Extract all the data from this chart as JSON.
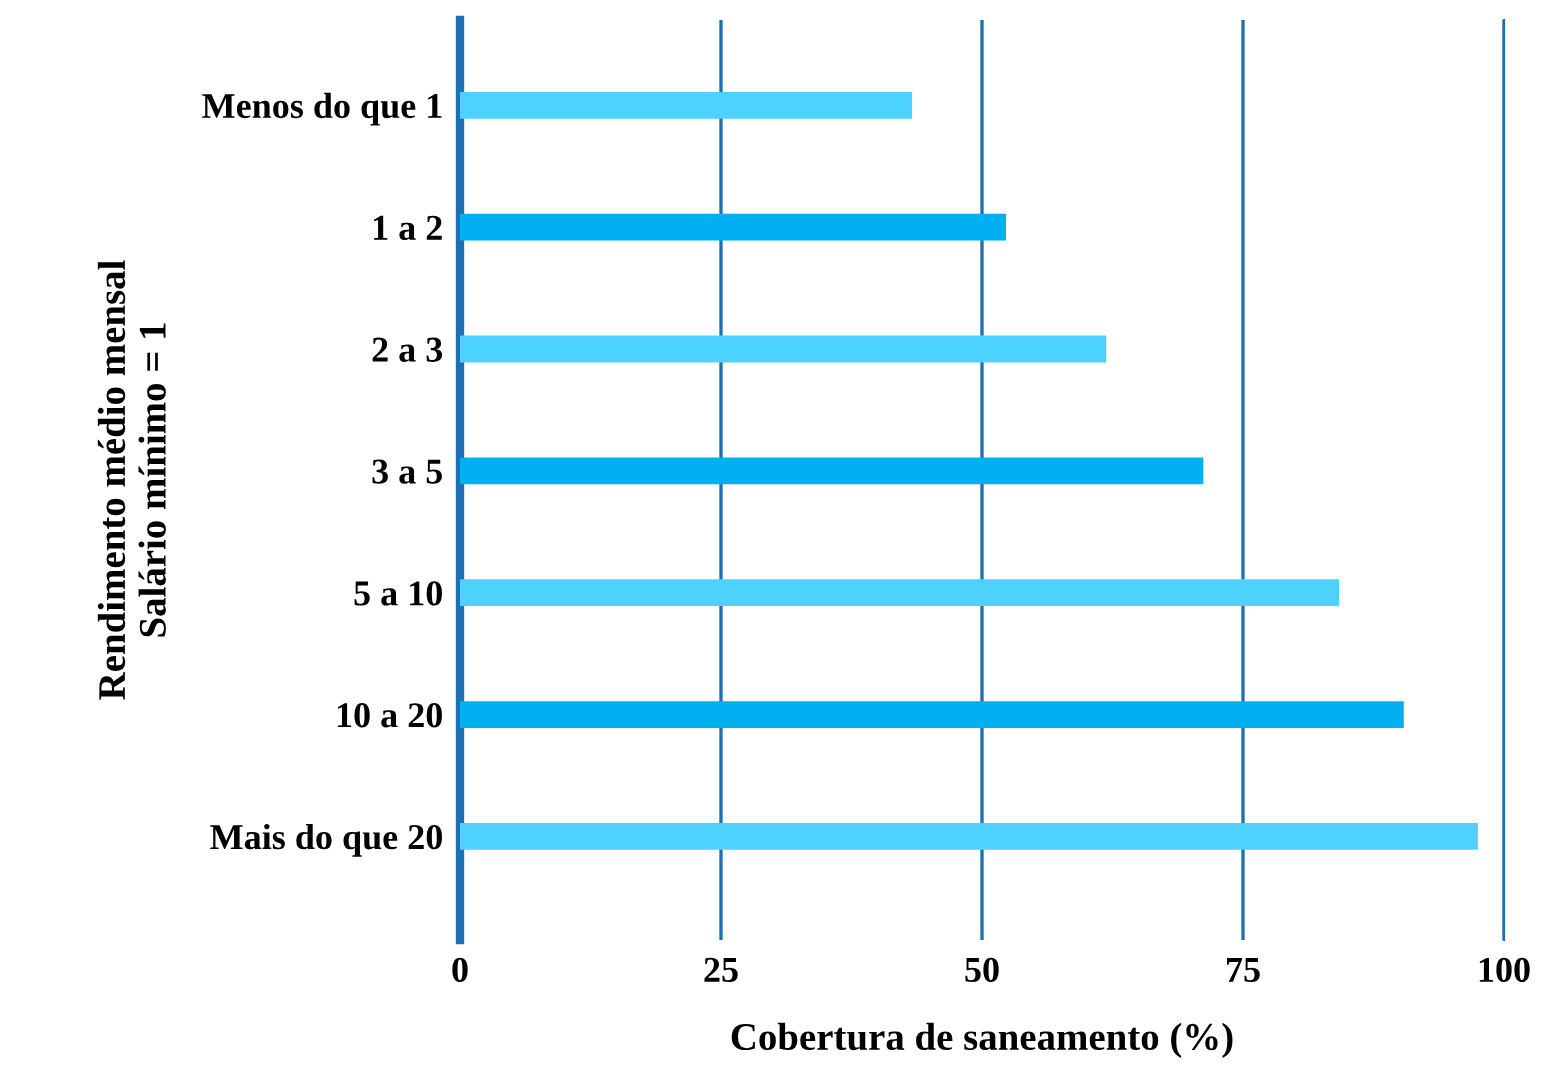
{
  "chart_data": {
    "type": "bar",
    "orientation": "horizontal",
    "xlabel": "Cobertura de saneamento (%)",
    "ylabel": "Rendimento médio mensal\nSalário mínimo = 1",
    "categories": [
      "Menos do que 1",
      "1 a 2",
      "2 a 3",
      "3 a 5",
      "5 a 10",
      "10 a 20",
      "Mais do que 20"
    ],
    "values": [
      43.3,
      52.3,
      61.9,
      71.2,
      84.2,
      90.4,
      97.5
    ],
    "colors": [
      "#4dd2ff",
      "#00b0f0",
      "#4dd2ff",
      "#00b0f0",
      "#4dd2ff",
      "#00b0f0",
      "#4dd2ff"
    ],
    "xlim": [
      0,
      100
    ],
    "xticks": [
      0,
      25,
      50,
      75,
      100
    ],
    "grid": "x"
  }
}
